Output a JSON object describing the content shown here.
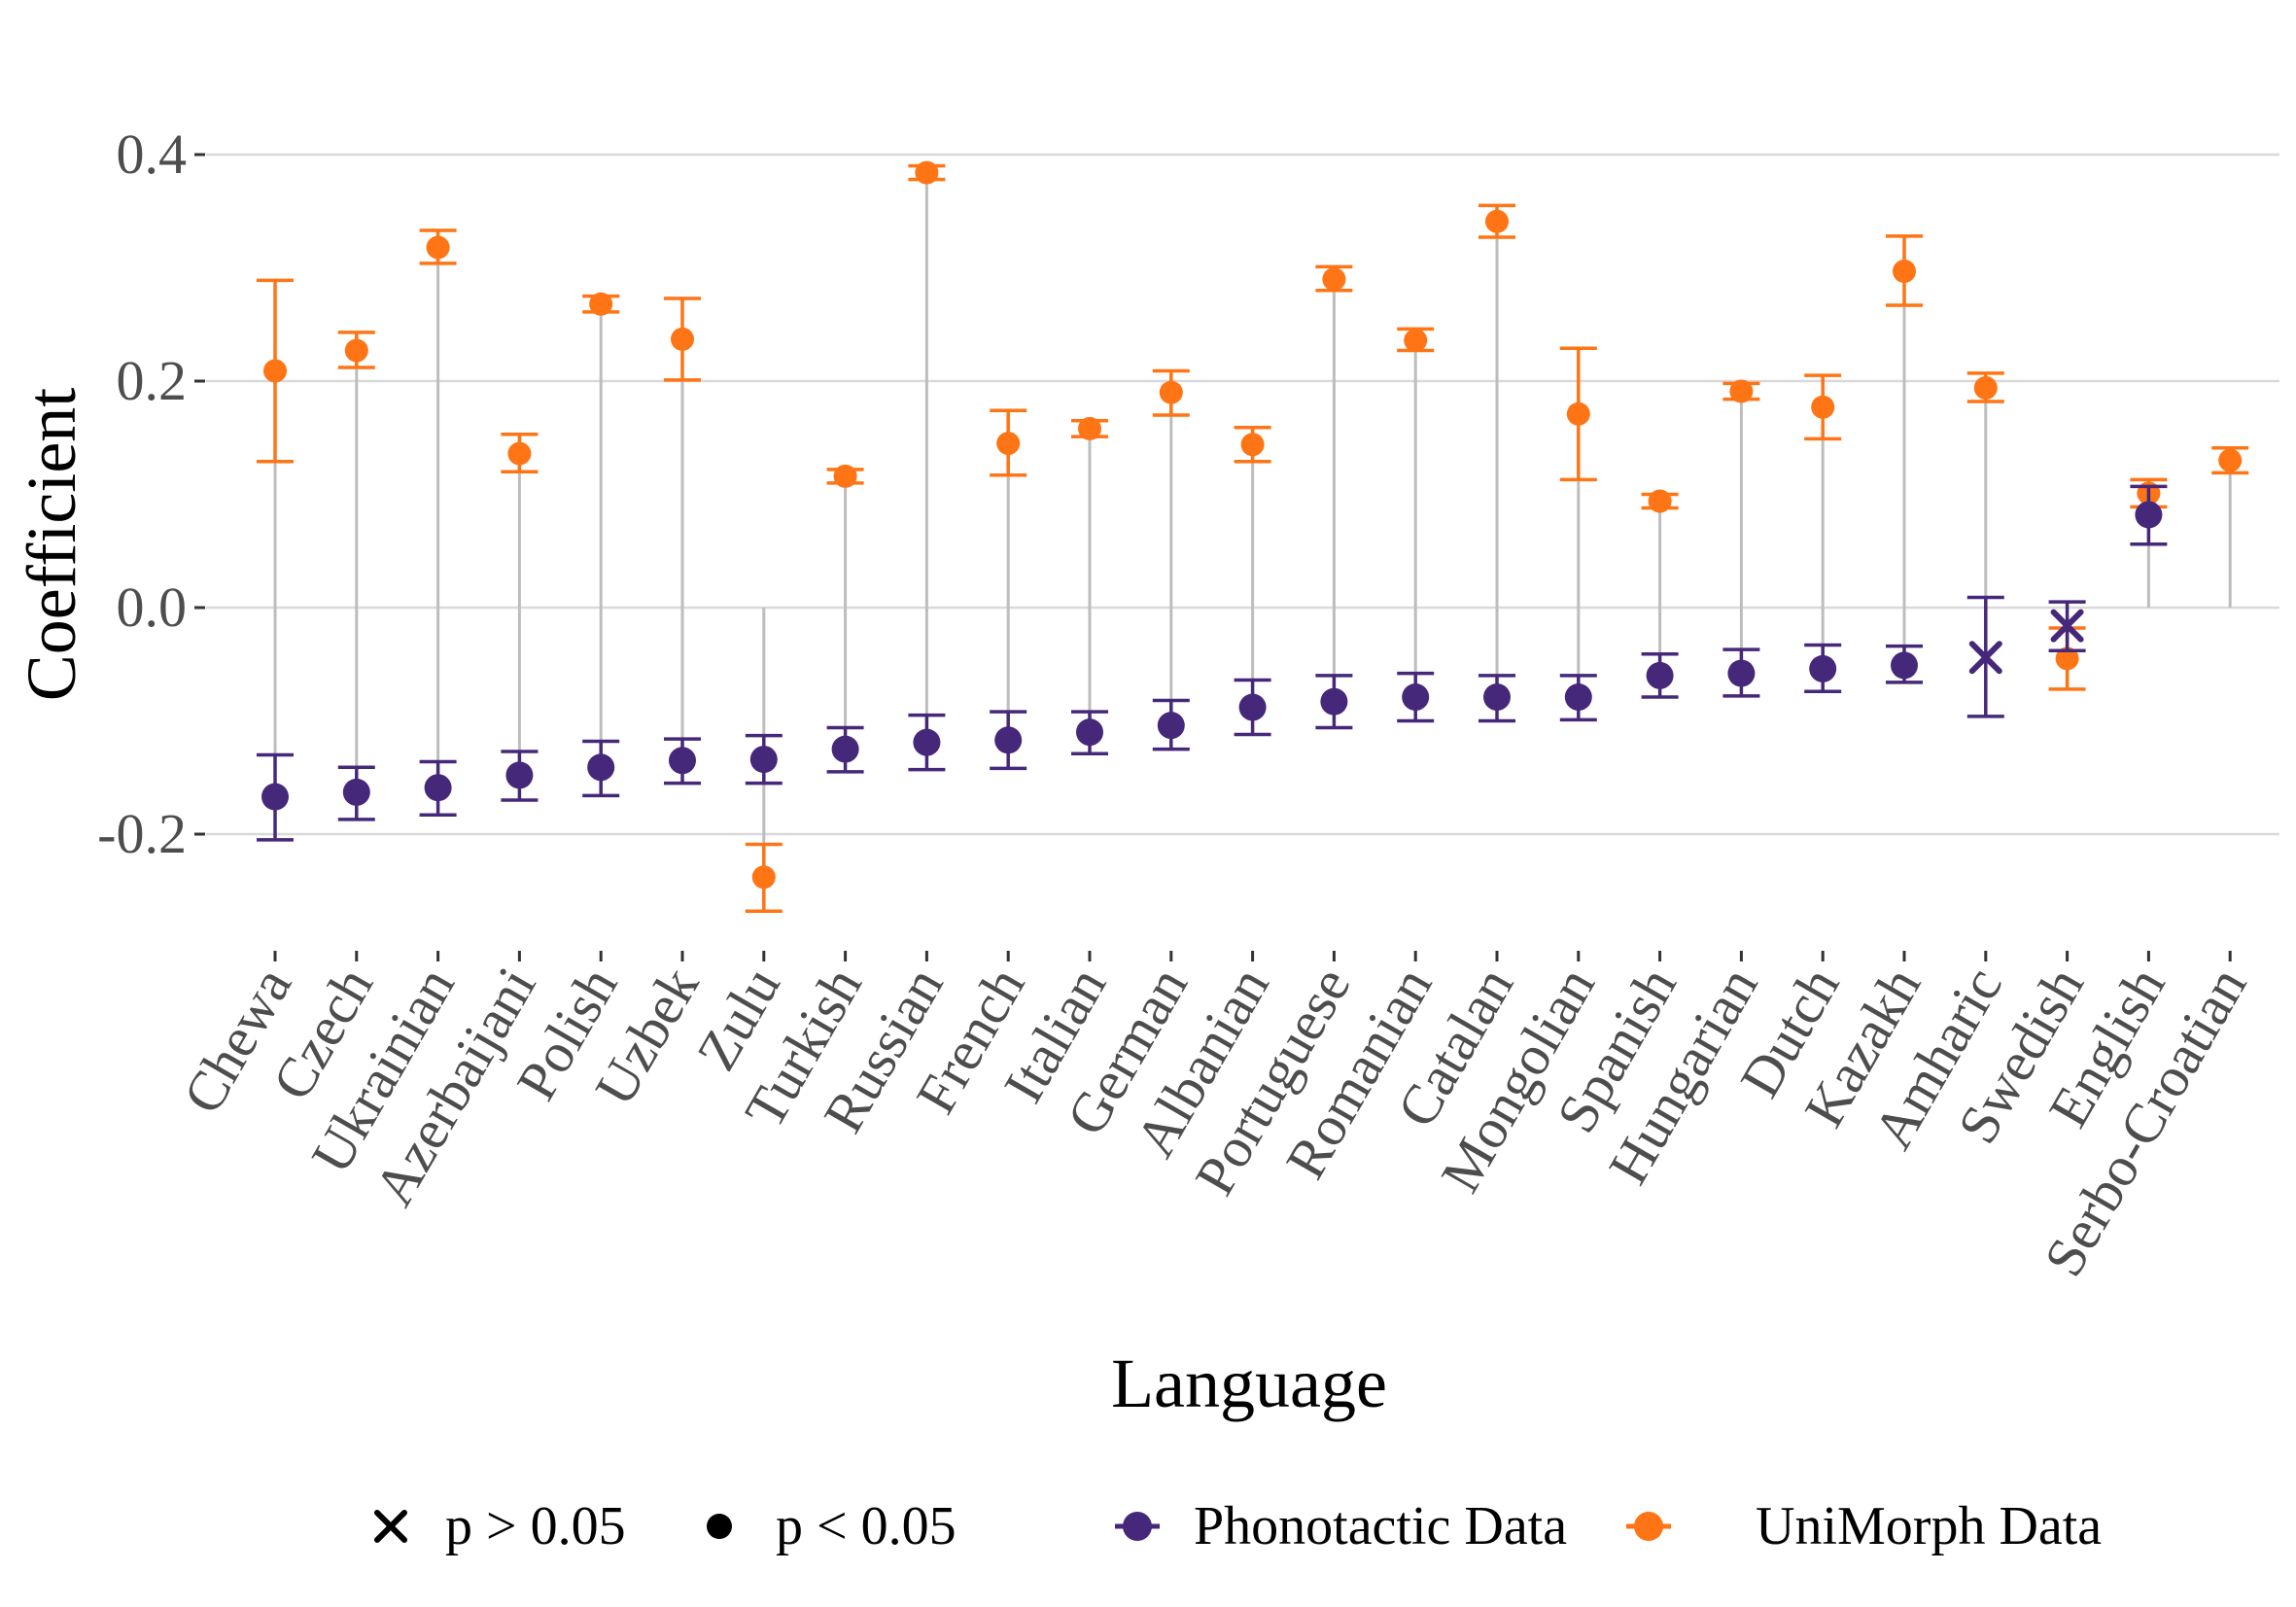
{
  "chart_data": {
    "type": "scatter",
    "title": "",
    "xlabel": "Language",
    "ylabel": "Coefficient",
    "ylim": [
      -0.3,
      0.42
    ],
    "yticks": [
      -0.2,
      0.0,
      0.2,
      0.4
    ],
    "ytick_labels": [
      "-0.2",
      "0.0",
      "0.2",
      "0.4"
    ],
    "grid": "horizontal",
    "categories": [
      "Chewa",
      "Czech",
      "Ukrainian",
      "Azerbaijani",
      "Polish",
      "Uzbek",
      "Zulu",
      "Turkish",
      "Russian",
      "French",
      "Italian",
      "German",
      "Albanian",
      "Portuguese",
      "Romanian",
      "Catalan",
      "Mongolian",
      "Spanish",
      "Hungarian",
      "Dutch",
      "Kazakh",
      "Amharic",
      "Swedish",
      "English",
      "Serbo-Croatian"
    ],
    "series": [
      {
        "name": "Phonotactic Data",
        "color": "#46287a",
        "values": [
          -0.167,
          -0.163,
          -0.159,
          -0.148,
          -0.141,
          -0.135,
          -0.134,
          -0.125,
          -0.119,
          -0.117,
          -0.11,
          -0.104,
          -0.088,
          -0.083,
          -0.079,
          -0.079,
          -0.079,
          -0.06,
          -0.058,
          -0.054,
          -0.051,
          -0.044,
          -0.016,
          0.082,
          null
        ],
        "ci_low": [
          -0.205,
          -0.187,
          -0.183,
          -0.17,
          -0.166,
          -0.155,
          -0.155,
          -0.145,
          -0.143,
          -0.142,
          -0.129,
          -0.125,
          -0.112,
          -0.106,
          -0.1,
          -0.1,
          -0.099,
          -0.079,
          -0.078,
          -0.074,
          -0.066,
          -0.096,
          -0.038,
          0.056,
          null
        ],
        "ci_high": [
          -0.13,
          -0.141,
          -0.136,
          -0.127,
          -0.118,
          -0.116,
          -0.113,
          -0.106,
          -0.095,
          -0.092,
          -0.092,
          -0.082,
          -0.064,
          -0.06,
          -0.058,
          -0.06,
          -0.06,
          -0.041,
          -0.037,
          -0.033,
          -0.034,
          0.009,
          0.005,
          0.107,
          null
        ],
        "significant": [
          true,
          true,
          true,
          true,
          true,
          true,
          true,
          true,
          true,
          true,
          true,
          true,
          true,
          true,
          true,
          true,
          true,
          true,
          true,
          true,
          true,
          false,
          false,
          true,
          null
        ]
      },
      {
        "name": "UniMorph Data",
        "color": "#ff7414",
        "values": [
          0.209,
          0.227,
          0.318,
          0.136,
          0.268,
          0.237,
          -0.238,
          0.116,
          0.384,
          0.145,
          0.158,
          0.19,
          0.144,
          0.29,
          0.236,
          0.341,
          0.171,
          0.094,
          0.191,
          0.177,
          0.297,
          0.194,
          -0.045,
          0.101,
          0.13
        ],
        "ci_low": [
          0.129,
          0.212,
          0.304,
          0.12,
          0.261,
          0.201,
          -0.268,
          0.11,
          0.378,
          0.117,
          0.151,
          0.17,
          0.129,
          0.28,
          0.227,
          0.327,
          0.113,
          0.088,
          0.184,
          0.149,
          0.267,
          0.182,
          -0.072,
          0.089,
          0.119
        ],
        "ci_high": [
          0.289,
          0.243,
          0.333,
          0.153,
          0.275,
          0.273,
          -0.209,
          0.122,
          0.39,
          0.174,
          0.165,
          0.209,
          0.159,
          0.301,
          0.246,
          0.355,
          0.229,
          0.1,
          0.198,
          0.205,
          0.328,
          0.207,
          -0.018,
          0.113,
          0.141
        ],
        "significant": [
          true,
          true,
          true,
          true,
          true,
          true,
          true,
          true,
          true,
          true,
          true,
          true,
          true,
          true,
          true,
          true,
          true,
          true,
          true,
          true,
          true,
          true,
          true,
          true,
          true
        ]
      }
    ],
    "legend": {
      "position": "bottom",
      "shape_entries": [
        {
          "symbol": "cross",
          "label": "p > 0.05"
        },
        {
          "symbol": "dot",
          "label": "p < 0.05"
        }
      ],
      "color_entries": [
        {
          "label": "Phonotactic Data",
          "color": "#46287a"
        },
        {
          "label": "UniMorph Data",
          "color": "#ff7414"
        }
      ]
    }
  }
}
